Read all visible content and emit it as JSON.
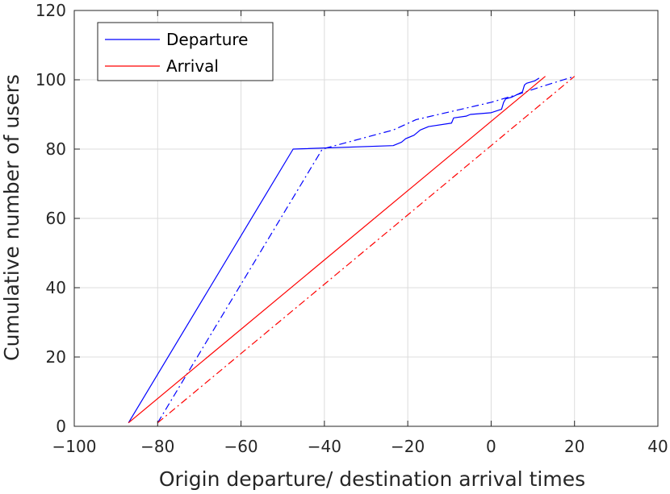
{
  "chart_data": {
    "type": "line",
    "xlabel": "Origin departure/ destination arrival times",
    "ylabel": "Cumulative number of users",
    "xlim": [
      -100,
      40
    ],
    "ylim": [
      0,
      120
    ],
    "xticks": [
      -100,
      -80,
      -60,
      -40,
      -20,
      0,
      20,
      40
    ],
    "yticks": [
      0,
      20,
      40,
      60,
      80,
      100,
      120
    ],
    "xtick_labels": [
      "−100",
      "−80",
      "−60",
      "−40",
      "−20",
      "0",
      "20",
      "40"
    ],
    "ytick_labels": [
      "0",
      "20",
      "40",
      "60",
      "80",
      "100",
      "120"
    ],
    "grid": true,
    "legend": {
      "position": "top-left",
      "entries": [
        {
          "label": "Departure",
          "color": "#0000ff"
        },
        {
          "label": "Arrival",
          "color": "#ff0000"
        }
      ]
    },
    "series": [
      {
        "legend_label": "Departure",
        "color": "#0000ff",
        "dash": "solid",
        "points": [
          [
            -87,
            1
          ],
          [
            -47.5,
            80
          ],
          [
            -23.5,
            81
          ],
          [
            -21.5,
            82
          ],
          [
            -20.5,
            83
          ],
          [
            -18.5,
            84
          ],
          [
            -17,
            85.5
          ],
          [
            -15,
            86.5
          ],
          [
            -9.5,
            87.5
          ],
          [
            -9,
            89
          ],
          [
            -6,
            89.5
          ],
          [
            -5,
            90
          ],
          [
            0,
            90.5
          ],
          [
            2.5,
            91.5
          ],
          [
            3,
            93.5
          ],
          [
            3.5,
            94.5
          ],
          [
            5,
            95
          ],
          [
            7.5,
            96.5
          ],
          [
            8,
            98.5
          ],
          [
            8.5,
            99
          ],
          [
            10.5,
            99.7
          ],
          [
            11.5,
            100.5
          ]
        ]
      },
      {
        "color": "#0000ff",
        "dash": "dashdot",
        "points": [
          [
            -80,
            1
          ],
          [
            -40.5,
            80
          ],
          [
            -39,
            80.5
          ],
          [
            -23.5,
            85.5
          ],
          [
            -18,
            88.5
          ],
          [
            -9,
            91
          ],
          [
            0,
            93.5
          ],
          [
            7,
            96
          ],
          [
            12,
            98
          ],
          [
            20,
            101
          ]
        ]
      },
      {
        "color": "#ff0000",
        "dash": "solid",
        "points": [
          [
            -87,
            1
          ],
          [
            13,
            101
          ]
        ]
      },
      {
        "color": "#ff0000",
        "dash": "dashdot",
        "points": [
          [
            -80,
            1
          ],
          [
            20,
            101
          ]
        ]
      }
    ]
  }
}
